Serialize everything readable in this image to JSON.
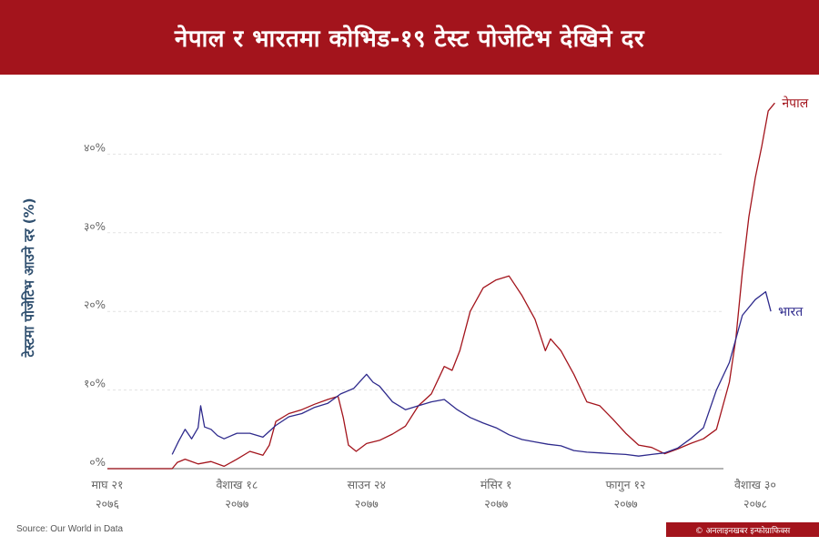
{
  "header": {
    "title": "नेपाल र भारतमा कोभिड-१९ टेस्ट पोजेटिभ देखिने दर"
  },
  "chart_data": {
    "type": "line",
    "title": "नेपाल र भारतमा कोभिड-१९ टेस्ट पोजेटिभ देखिने दर",
    "ylabel": "टेस्टमा पोजेटिभ आउने दर (%)",
    "xlabel": "",
    "ylim": [
      0,
      50
    ],
    "yticks": [
      {
        "value": 0,
        "label": "०%"
      },
      {
        "value": 10,
        "label": "१०%"
      },
      {
        "value": 20,
        "label": "२०%"
      },
      {
        "value": 30,
        "label": "३०%"
      },
      {
        "value": 40,
        "label": "४०%"
      }
    ],
    "grid": true,
    "legend": "direct labels at line ends (right)",
    "x": [
      "माघ २१ २०७६",
      "वैशाख १८ २०७७",
      "साउन २४ २०७७",
      "मंसिर १ २०७७",
      "फागुन १२ २०७७",
      "वैशाख ३० २०७८"
    ],
    "xticks": [
      {
        "line1": "माघ २१",
        "line2": "२०७६"
      },
      {
        "line1": "वैशाख १८",
        "line2": "२०७७"
      },
      {
        "line1": "साउन २४",
        "line2": "२०७७"
      },
      {
        "line1": "मंसिर १",
        "line2": "२०७७"
      },
      {
        "line1": "फागुन १२",
        "line2": "२०७७"
      },
      {
        "line1": "वैशाख ३०",
        "line2": "२०७८"
      }
    ],
    "series": [
      {
        "name": "नेपाल",
        "color": "#a3141c",
        "points": [
          [
            0,
            0
          ],
          [
            0.5,
            0
          ],
          [
            0.54,
            0.8
          ],
          [
            0.6,
            1.2
          ],
          [
            0.7,
            0.6
          ],
          [
            0.8,
            0.9
          ],
          [
            0.9,
            0.3
          ],
          [
            1.0,
            1.2
          ],
          [
            1.1,
            2.2
          ],
          [
            1.2,
            1.7
          ],
          [
            1.25,
            3.0
          ],
          [
            1.3,
            6.0
          ],
          [
            1.4,
            7.0
          ],
          [
            1.5,
            7.5
          ],
          [
            1.6,
            8.2
          ],
          [
            1.7,
            8.8
          ],
          [
            1.78,
            9.2
          ],
          [
            1.82,
            6.5
          ],
          [
            1.86,
            3.0
          ],
          [
            1.92,
            2.2
          ],
          [
            2.0,
            3.2
          ],
          [
            2.1,
            3.6
          ],
          [
            2.2,
            4.4
          ],
          [
            2.3,
            5.4
          ],
          [
            2.4,
            8.0
          ],
          [
            2.5,
            9.5
          ],
          [
            2.6,
            13.0
          ],
          [
            2.66,
            12.5
          ],
          [
            2.72,
            15.0
          ],
          [
            2.8,
            20.0
          ],
          [
            2.9,
            23.0
          ],
          [
            3.0,
            24.0
          ],
          [
            3.1,
            24.5
          ],
          [
            3.2,
            22.0
          ],
          [
            3.3,
            19.0
          ],
          [
            3.38,
            15.0
          ],
          [
            3.42,
            16.5
          ],
          [
            3.5,
            15.0
          ],
          [
            3.6,
            12.0
          ],
          [
            3.7,
            8.5
          ],
          [
            3.8,
            8.0
          ],
          [
            3.9,
            6.3
          ],
          [
            4.0,
            4.5
          ],
          [
            4.1,
            3.0
          ],
          [
            4.2,
            2.7
          ],
          [
            4.3,
            1.9
          ],
          [
            4.4,
            2.5
          ],
          [
            4.5,
            3.2
          ],
          [
            4.6,
            3.8
          ],
          [
            4.7,
            5.0
          ],
          [
            4.8,
            11.0
          ],
          [
            4.85,
            16.5
          ],
          [
            4.9,
            25.0
          ],
          [
            4.95,
            32.0
          ],
          [
            5.0,
            37.0
          ],
          [
            5.05,
            41.0
          ],
          [
            5.1,
            45.5
          ],
          [
            5.15,
            46.5
          ]
        ]
      },
      {
        "name": "भारत",
        "color": "#2e2a8c",
        "points": [
          [
            0.5,
            1.8
          ],
          [
            0.55,
            3.5
          ],
          [
            0.6,
            5.0
          ],
          [
            0.65,
            3.8
          ],
          [
            0.7,
            5.2
          ],
          [
            0.72,
            8.0
          ],
          [
            0.75,
            5.3
          ],
          [
            0.8,
            5.0
          ],
          [
            0.85,
            4.2
          ],
          [
            0.9,
            3.8
          ],
          [
            1.0,
            4.5
          ],
          [
            1.1,
            4.5
          ],
          [
            1.2,
            4.0
          ],
          [
            1.3,
            5.5
          ],
          [
            1.4,
            6.6
          ],
          [
            1.5,
            7.0
          ],
          [
            1.6,
            7.8
          ],
          [
            1.7,
            8.3
          ],
          [
            1.8,
            9.5
          ],
          [
            1.9,
            10.2
          ],
          [
            2.0,
            12.0
          ],
          [
            2.05,
            11.0
          ],
          [
            2.1,
            10.5
          ],
          [
            2.2,
            8.5
          ],
          [
            2.3,
            7.5
          ],
          [
            2.4,
            8.0
          ],
          [
            2.5,
            8.5
          ],
          [
            2.6,
            8.8
          ],
          [
            2.7,
            7.5
          ],
          [
            2.8,
            6.5
          ],
          [
            2.9,
            5.8
          ],
          [
            3.0,
            5.2
          ],
          [
            3.1,
            4.3
          ],
          [
            3.2,
            3.7
          ],
          [
            3.3,
            3.4
          ],
          [
            3.4,
            3.1
          ],
          [
            3.5,
            2.9
          ],
          [
            3.6,
            2.3
          ],
          [
            3.7,
            2.1
          ],
          [
            3.8,
            2.0
          ],
          [
            3.9,
            1.9
          ],
          [
            4.0,
            1.8
          ],
          [
            4.1,
            1.6
          ],
          [
            4.2,
            1.8
          ],
          [
            4.3,
            2.0
          ],
          [
            4.4,
            2.6
          ],
          [
            4.5,
            3.8
          ],
          [
            4.6,
            5.2
          ],
          [
            4.7,
            10.0
          ],
          [
            4.8,
            13.5
          ],
          [
            4.9,
            19.5
          ],
          [
            5.0,
            21.5
          ],
          [
            5.08,
            22.5
          ],
          [
            5.12,
            20.0
          ]
        ]
      }
    ]
  },
  "footer": {
    "source": "Source: Our World in Data",
    "credit": "© अनलाइनखबर इन्फोग्राफिक्स"
  }
}
